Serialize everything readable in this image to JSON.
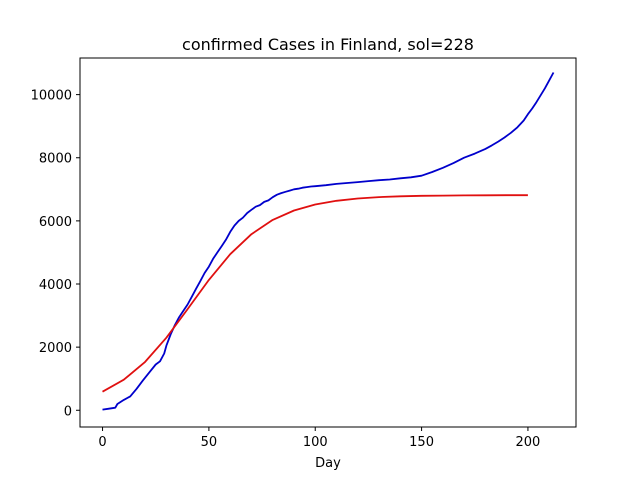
{
  "chart_data": {
    "type": "line",
    "title": "confirmed Cases in Finland, sol=228",
    "xlabel": "Day",
    "ylabel": "",
    "xlim": [
      -10.6,
      222.6
    ],
    "ylim": [
      -530,
      11160
    ],
    "xticks": [
      0,
      50,
      100,
      150,
      200
    ],
    "yticks": [
      0,
      2000,
      4000,
      6000,
      8000,
      10000
    ],
    "grid": false,
    "series": [
      {
        "color": "#0000cc",
        "x": [
          0,
          3,
          6,
          7,
          10,
          13,
          16,
          19,
          22,
          25,
          27,
          29,
          30,
          32,
          34,
          36,
          38,
          40,
          42,
          44,
          46,
          48,
          50,
          52,
          54,
          56,
          58,
          60,
          62,
          64,
          66,
          68,
          70,
          72,
          74,
          76,
          78,
          80,
          82,
          84,
          86,
          88,
          90,
          92,
          94,
          96,
          98,
          100,
          105,
          110,
          115,
          120,
          125,
          130,
          135,
          140,
          145,
          150,
          155,
          160,
          165,
          170,
          175,
          180,
          183,
          186,
          189,
          192,
          195,
          198,
          200,
          202,
          204,
          206,
          208,
          210,
          212
        ],
        "y": [
          20,
          50,
          80,
          200,
          330,
          440,
          680,
          950,
          1200,
          1450,
          1550,
          1800,
          2050,
          2400,
          2700,
          2950,
          3150,
          3350,
          3600,
          3850,
          4100,
          4350,
          4550,
          4800,
          5000,
          5200,
          5400,
          5650,
          5850,
          6000,
          6100,
          6250,
          6350,
          6450,
          6500,
          6600,
          6650,
          6750,
          6830,
          6880,
          6920,
          6960,
          7000,
          7020,
          7050,
          7070,
          7090,
          7100,
          7130,
          7170,
          7200,
          7230,
          7260,
          7290,
          7310,
          7350,
          7380,
          7430,
          7550,
          7680,
          7830,
          8000,
          8130,
          8280,
          8390,
          8510,
          8640,
          8790,
          8960,
          9180,
          9380,
          9560,
          9760,
          9980,
          10200,
          10450,
          10700
        ]
      },
      {
        "color": "#e01010",
        "x": [
          0,
          10,
          20,
          30,
          40,
          50,
          60,
          70,
          80,
          90,
          100,
          110,
          120,
          130,
          140,
          150,
          160,
          170,
          180,
          190,
          200
        ],
        "y": [
          588,
          967,
          1533,
          2298,
          3205,
          4129,
          4944,
          5579,
          6030,
          6329,
          6520,
          6637,
          6709,
          6752,
          6778,
          6793,
          6802,
          6808,
          6811,
          6813,
          6814
        ]
      }
    ]
  }
}
